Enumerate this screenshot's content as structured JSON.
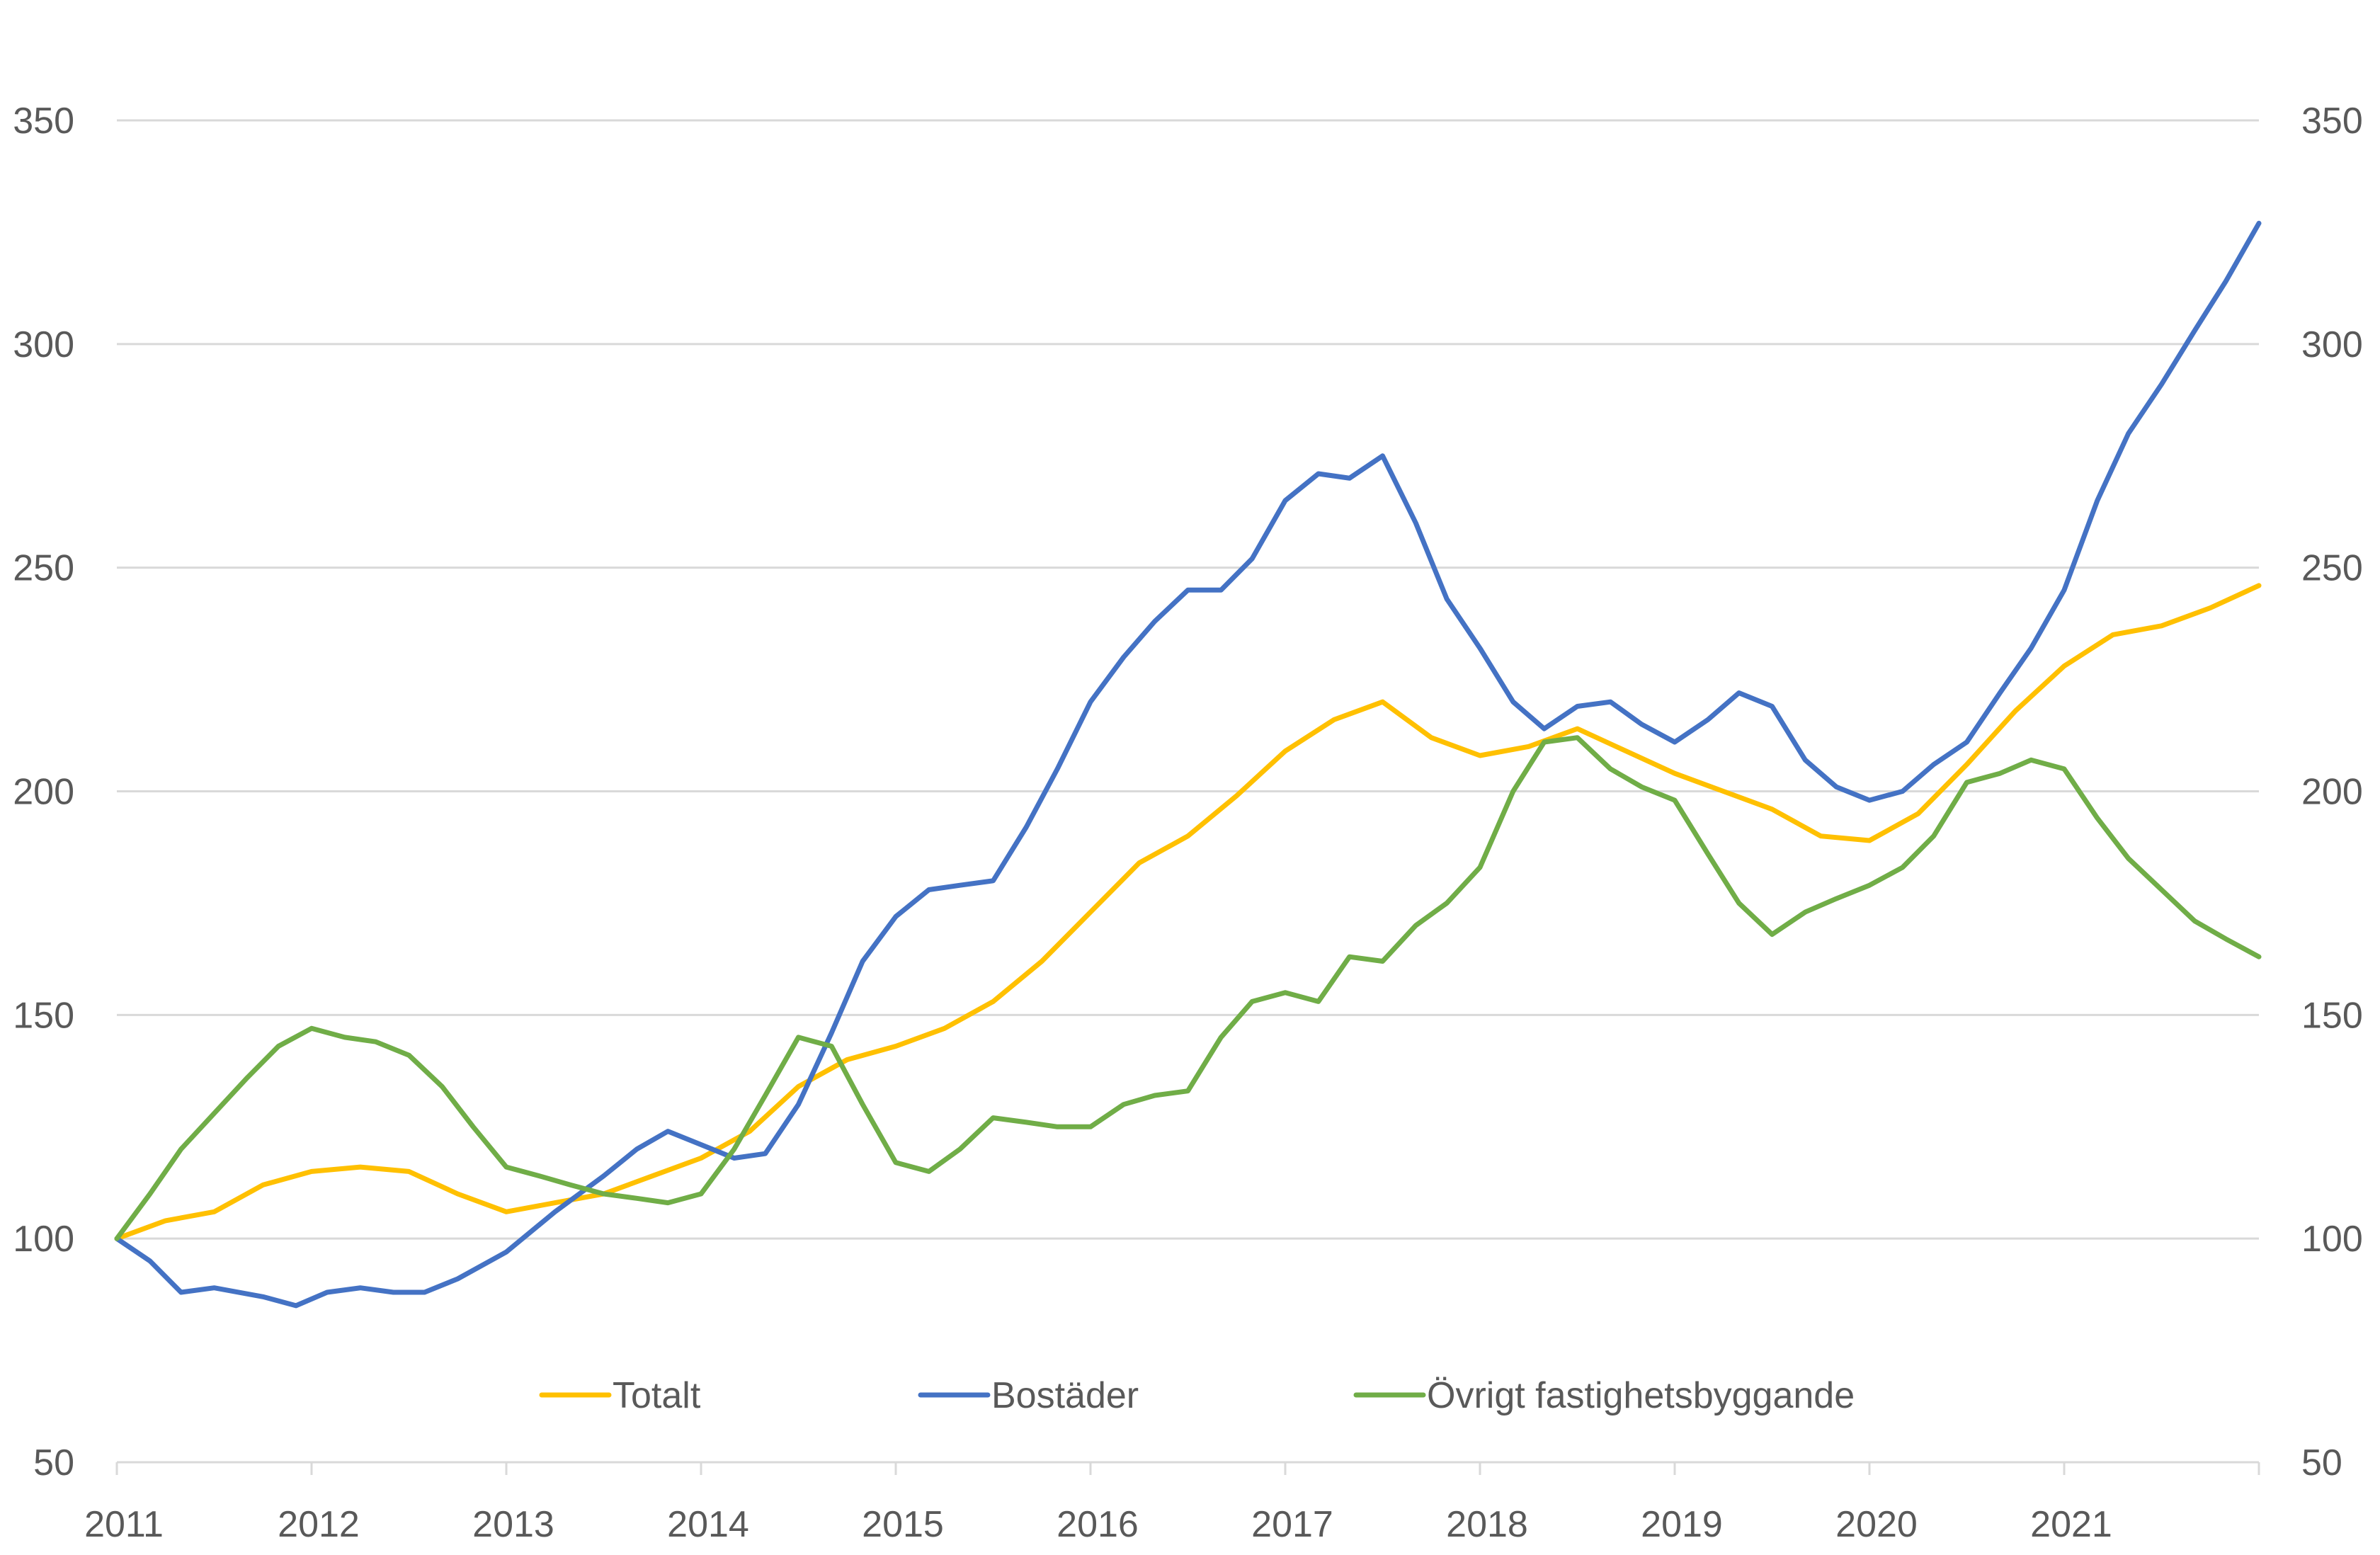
{
  "chart_data": {
    "type": "line",
    "title": "",
    "xlabel": "",
    "ylabel": "",
    "ylim": [
      50,
      350
    ],
    "yticks": [
      50,
      100,
      150,
      200,
      250,
      300,
      350
    ],
    "xlim": [
      2011,
      2022
    ],
    "xticks": [
      2011,
      2012,
      2013,
      2014,
      2015,
      2016,
      2017,
      2018,
      2019,
      2020,
      2021
    ],
    "xtick_labels": [
      "2011",
      "2012",
      "2013",
      "2014",
      "2015",
      "2016",
      "2017",
      "2018",
      "2019",
      "2020",
      "2021"
    ],
    "grid": true,
    "secondary_axis": true,
    "legend_position": "bottom-center",
    "series": [
      {
        "name": "Totalt",
        "color": "#FFC000",
        "points": [
          [
            2011.0,
            100
          ],
          [
            2011.25,
            104
          ],
          [
            2011.5,
            106
          ],
          [
            2011.75,
            112
          ],
          [
            2012.0,
            115
          ],
          [
            2012.25,
            116
          ],
          [
            2012.5,
            115
          ],
          [
            2012.75,
            110
          ],
          [
            2013.0,
            106
          ],
          [
            2013.25,
            108
          ],
          [
            2013.5,
            110
          ],
          [
            2013.75,
            114
          ],
          [
            2014.0,
            118
          ],
          [
            2014.25,
            124
          ],
          [
            2014.5,
            134
          ],
          [
            2014.75,
            140
          ],
          [
            2015.0,
            143
          ],
          [
            2015.25,
            147
          ],
          [
            2015.5,
            153
          ],
          [
            2015.75,
            162
          ],
          [
            2016.0,
            173
          ],
          [
            2016.25,
            184
          ],
          [
            2016.5,
            190
          ],
          [
            2016.75,
            199
          ],
          [
            2017.0,
            209
          ],
          [
            2017.25,
            216
          ],
          [
            2017.5,
            220
          ],
          [
            2017.75,
            212
          ],
          [
            2018.0,
            208
          ],
          [
            2018.25,
            210
          ],
          [
            2018.5,
            214
          ],
          [
            2018.75,
            209
          ],
          [
            2019.0,
            204
          ],
          [
            2019.25,
            200
          ],
          [
            2019.5,
            196
          ],
          [
            2019.75,
            190
          ],
          [
            2020.0,
            189
          ],
          [
            2020.25,
            195
          ],
          [
            2020.5,
            206
          ],
          [
            2020.75,
            218
          ],
          [
            2021.0,
            228
          ],
          [
            2021.25,
            235
          ],
          [
            2021.5,
            237
          ],
          [
            2021.75,
            241
          ],
          [
            2022.0,
            246
          ]
        ]
      },
      {
        "name": "Bostäder",
        "color": "#4472C4",
        "points": [
          [
            2011.0,
            100
          ],
          [
            2011.17,
            95
          ],
          [
            2011.33,
            88
          ],
          [
            2011.5,
            89
          ],
          [
            2011.75,
            87
          ],
          [
            2011.92,
            85
          ],
          [
            2012.08,
            88
          ],
          [
            2012.25,
            89
          ],
          [
            2012.42,
            88
          ],
          [
            2012.58,
            88
          ],
          [
            2012.75,
            91
          ],
          [
            2013.0,
            97
          ],
          [
            2013.25,
            106
          ],
          [
            2013.5,
            114
          ],
          [
            2013.67,
            120
          ],
          [
            2013.83,
            124
          ],
          [
            2014.0,
            121
          ],
          [
            2014.17,
            118
          ],
          [
            2014.33,
            119
          ],
          [
            2014.5,
            130
          ],
          [
            2014.67,
            146
          ],
          [
            2014.83,
            162
          ],
          [
            2015.0,
            172
          ],
          [
            2015.17,
            178
          ],
          [
            2015.33,
            179
          ],
          [
            2015.5,
            180
          ],
          [
            2015.67,
            192
          ],
          [
            2015.83,
            205
          ],
          [
            2016.0,
            220
          ],
          [
            2016.17,
            230
          ],
          [
            2016.33,
            238
          ],
          [
            2016.5,
            245
          ],
          [
            2016.67,
            245
          ],
          [
            2016.83,
            252
          ],
          [
            2017.0,
            265
          ],
          [
            2017.17,
            271
          ],
          [
            2017.33,
            270
          ],
          [
            2017.5,
            275
          ],
          [
            2017.67,
            260
          ],
          [
            2017.83,
            243
          ],
          [
            2018.0,
            232
          ],
          [
            2018.17,
            220
          ],
          [
            2018.33,
            214
          ],
          [
            2018.5,
            219
          ],
          [
            2018.67,
            220
          ],
          [
            2018.83,
            215
          ],
          [
            2019.0,
            211
          ],
          [
            2019.17,
            216
          ],
          [
            2019.33,
            222
          ],
          [
            2019.5,
            219
          ],
          [
            2019.67,
            207
          ],
          [
            2019.83,
            201
          ],
          [
            2020.0,
            198
          ],
          [
            2020.17,
            200
          ],
          [
            2020.33,
            206
          ],
          [
            2020.5,
            211
          ],
          [
            2020.67,
            222
          ],
          [
            2020.83,
            232
          ],
          [
            2021.0,
            245
          ],
          [
            2021.17,
            265
          ],
          [
            2021.33,
            280
          ],
          [
            2021.5,
            291
          ],
          [
            2021.67,
            303
          ],
          [
            2021.83,
            314
          ],
          [
            2022.0,
            327
          ]
        ]
      },
      {
        "name": "Övrigt fastighetsbyggande",
        "color": "#70AD47",
        "points": [
          [
            2011.0,
            100
          ],
          [
            2011.17,
            110
          ],
          [
            2011.33,
            120
          ],
          [
            2011.5,
            128
          ],
          [
            2011.67,
            136
          ],
          [
            2011.83,
            143
          ],
          [
            2012.0,
            147
          ],
          [
            2012.17,
            145
          ],
          [
            2012.33,
            144
          ],
          [
            2012.5,
            141
          ],
          [
            2012.67,
            134
          ],
          [
            2012.83,
            125
          ],
          [
            2013.0,
            116
          ],
          [
            2013.17,
            114
          ],
          [
            2013.33,
            112
          ],
          [
            2013.5,
            110
          ],
          [
            2013.67,
            109
          ],
          [
            2013.83,
            108
          ],
          [
            2014.0,
            110
          ],
          [
            2014.17,
            120
          ],
          [
            2014.33,
            132
          ],
          [
            2014.5,
            145
          ],
          [
            2014.67,
            143
          ],
          [
            2014.83,
            130
          ],
          [
            2015.0,
            117
          ],
          [
            2015.17,
            115
          ],
          [
            2015.33,
            120
          ],
          [
            2015.5,
            127
          ],
          [
            2015.67,
            126
          ],
          [
            2015.83,
            125
          ],
          [
            2016.0,
            125
          ],
          [
            2016.17,
            130
          ],
          [
            2016.33,
            132
          ],
          [
            2016.5,
            133
          ],
          [
            2016.67,
            145
          ],
          [
            2016.83,
            153
          ],
          [
            2017.0,
            155
          ],
          [
            2017.17,
            153
          ],
          [
            2017.33,
            163
          ],
          [
            2017.5,
            162
          ],
          [
            2017.67,
            170
          ],
          [
            2017.83,
            175
          ],
          [
            2018.0,
            183
          ],
          [
            2018.17,
            200
          ],
          [
            2018.33,
            211
          ],
          [
            2018.5,
            212
          ],
          [
            2018.67,
            205
          ],
          [
            2018.83,
            201
          ],
          [
            2019.0,
            198
          ],
          [
            2019.17,
            186
          ],
          [
            2019.33,
            175
          ],
          [
            2019.5,
            168
          ],
          [
            2019.67,
            173
          ],
          [
            2019.83,
            176
          ],
          [
            2020.0,
            179
          ],
          [
            2020.17,
            183
          ],
          [
            2020.33,
            190
          ],
          [
            2020.5,
            202
          ],
          [
            2020.67,
            204
          ],
          [
            2020.83,
            207
          ],
          [
            2021.0,
            205
          ],
          [
            2021.17,
            194
          ],
          [
            2021.33,
            185
          ],
          [
            2021.5,
            178
          ],
          [
            2021.67,
            171
          ],
          [
            2021.83,
            167
          ],
          [
            2022.0,
            163
          ]
        ]
      }
    ]
  }
}
